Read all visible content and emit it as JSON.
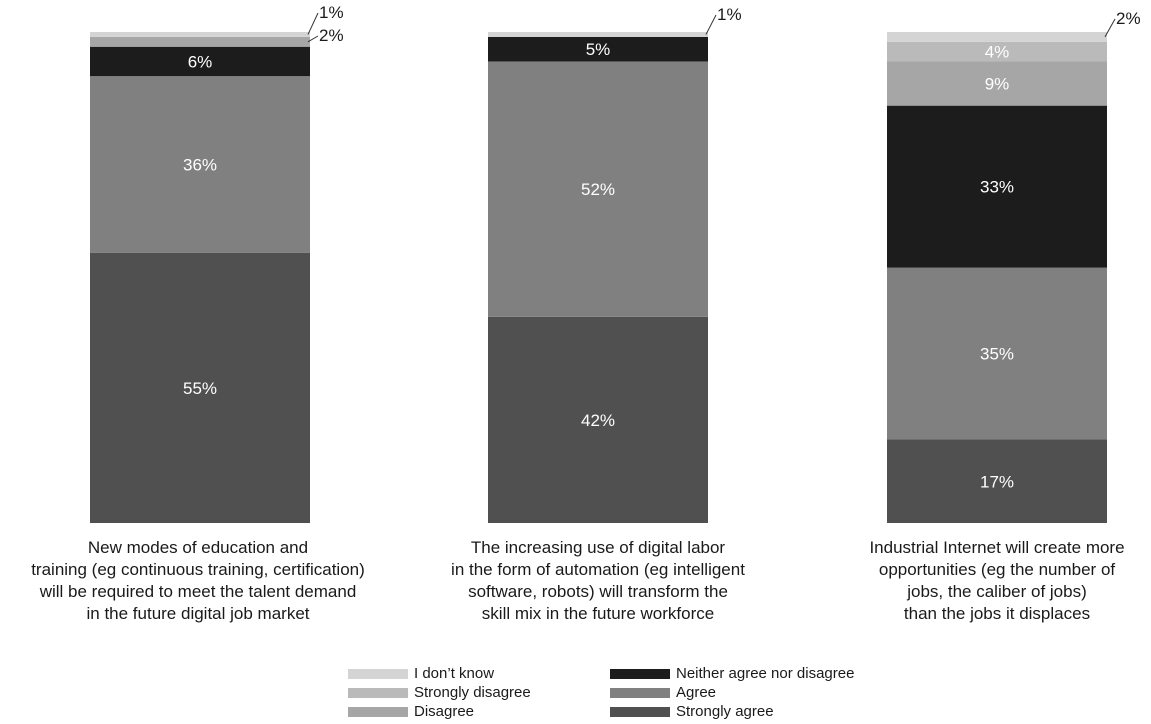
{
  "chart_data": {
    "type": "bar",
    "stacked": true,
    "orientation": "vertical",
    "categories": [
      [
        "New modes of education and",
        "training (eg continuous training, certification)",
        "will be required to meet the talent demand",
        "in the future digital job market"
      ],
      [
        "The increasing use of digital labor",
        "in the form of automation (eg intelligent",
        "software, robots) will transform the",
        "skill mix in the future workforce"
      ],
      [
        "Industrial Internet will create more",
        "opportunities (eg the number of",
        "jobs, the caliber of jobs)",
        "than the jobs it displaces"
      ]
    ],
    "series": [
      {
        "name": "Strongly agree",
        "color": "#505050",
        "values": [
          55,
          42,
          17
        ]
      },
      {
        "name": "Agree",
        "color": "#808080",
        "values": [
          36,
          52,
          35
        ]
      },
      {
        "name": "Neither agree nor disagree",
        "color": "#1c1c1c",
        "values": [
          6,
          5,
          33
        ]
      },
      {
        "name": "Disagree",
        "color": "#a6a6a6",
        "values": [
          2,
          0,
          9
        ]
      },
      {
        "name": "Strongly disagree",
        "color": "#bababa",
        "values": [
          0,
          0,
          4
        ]
      },
      {
        "name": "I don’t know",
        "color": "#d4d4d4",
        "values": [
          1,
          1,
          2
        ]
      }
    ],
    "value_labels": [
      [
        "55%",
        "36%",
        "6%",
        "2%",
        "",
        "1%"
      ],
      [
        "42%",
        "52%",
        "5%",
        "",
        "",
        "1%"
      ],
      [
        "17%",
        "35%",
        "33%",
        "9%",
        "4%",
        "2%"
      ]
    ],
    "ylim": [
      0,
      100
    ],
    "grid": false,
    "legend_position": "bottom"
  },
  "legend": {
    "col1": [
      {
        "label": "I don’t know",
        "color": "#d4d4d4"
      },
      {
        "label": "Strongly disagree",
        "color": "#bababa"
      },
      {
        "label": "Disagree",
        "color": "#a6a6a6"
      }
    ],
    "col2": [
      {
        "label": "Neither agree nor disagree",
        "color": "#1c1c1c"
      },
      {
        "label": "Agree",
        "color": "#808080"
      },
      {
        "label": "Strongly agree",
        "color": "#505050"
      }
    ]
  }
}
